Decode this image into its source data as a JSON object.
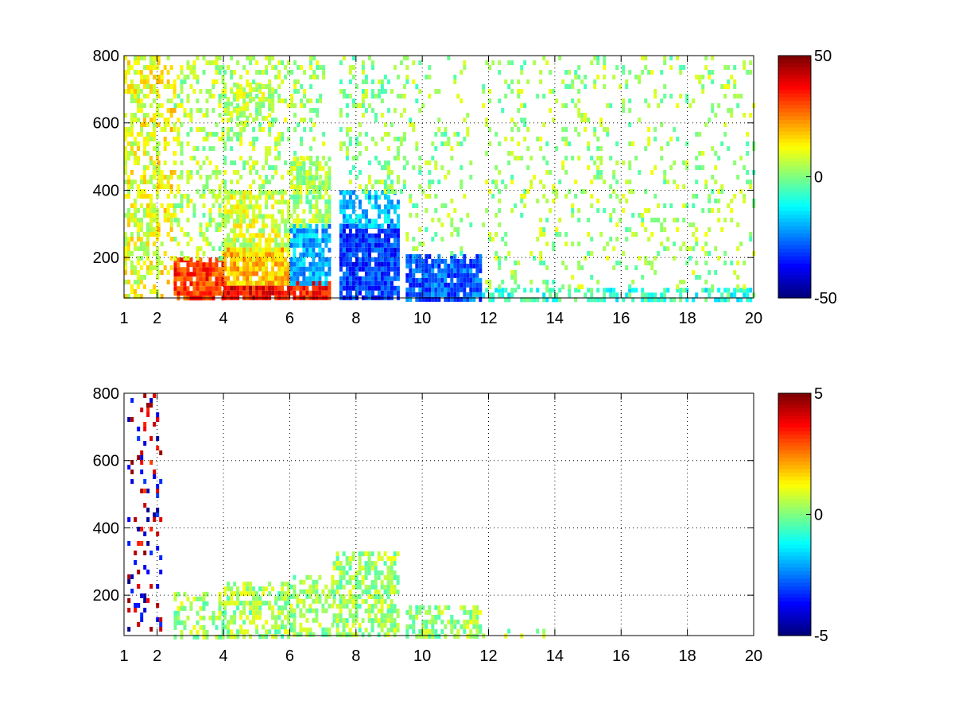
{
  "chart_data": [
    {
      "type": "heatmap",
      "title": "",
      "xlabel": "",
      "ylabel": "",
      "xlim": [
        1,
        20
      ],
      "ylim": [
        80,
        800
      ],
      "grid": true,
      "grid_style": "dotted",
      "colormap": "jet",
      "background_color": "#ffffff",
      "x_ticks": [
        1,
        2,
        4,
        6,
        8,
        10,
        12,
        14,
        16,
        18,
        20
      ],
      "x_tick_labels": [
        "1",
        "2",
        "4",
        "6",
        "8",
        "10",
        "12",
        "14",
        "16",
        "18",
        "20"
      ],
      "y_ticks": [
        200,
        400,
        600,
        800
      ],
      "y_tick_labels": [
        "200",
        "400",
        "600",
        "800"
      ],
      "colorbar": {
        "range": [
          -50,
          50
        ],
        "ticks": [
          50,
          0,
          -50
        ],
        "tick_labels": [
          "50",
          "0",
          "-50"
        ]
      },
      "regions": [
        {
          "x": [
            1.0,
            2.0
          ],
          "y": [
            80,
            800
          ],
          "value": 10,
          "density": 0.55
        },
        {
          "x": [
            2.0,
            2.5
          ],
          "y": [
            80,
            800
          ],
          "value": 12,
          "density": 0.35
        },
        {
          "x": [
            2.5,
            4.0
          ],
          "y": [
            80,
            200
          ],
          "value": 32,
          "density": 0.9
        },
        {
          "x": [
            2.5,
            4.0
          ],
          "y": [
            200,
            800
          ],
          "value": 5,
          "density": 0.35
        },
        {
          "x": [
            4.0,
            6.0
          ],
          "y": [
            80,
            130
          ],
          "value": 38,
          "density": 0.95
        },
        {
          "x": [
            4.0,
            6.0
          ],
          "y": [
            130,
            230
          ],
          "value": 18,
          "density": 0.85
        },
        {
          "x": [
            4.0,
            6.0
          ],
          "y": [
            230,
            400
          ],
          "value": 8,
          "density": 0.7
        },
        {
          "x": [
            4.0,
            5.5
          ],
          "y": [
            600,
            720
          ],
          "value": 6,
          "density": 0.5
        },
        {
          "x": [
            4.0,
            7.0
          ],
          "y": [
            400,
            800
          ],
          "value": 4,
          "density": 0.3
        },
        {
          "x": [
            6.0,
            7.2
          ],
          "y": [
            80,
            130
          ],
          "value": 35,
          "density": 0.95
        },
        {
          "x": [
            6.0,
            7.2
          ],
          "y": [
            130,
            300
          ],
          "value": -20,
          "density": 0.85
        },
        {
          "x": [
            6.0,
            7.2
          ],
          "y": [
            300,
            500
          ],
          "value": 4,
          "density": 0.6
        },
        {
          "x": [
            7.5,
            9.3
          ],
          "y": [
            80,
            300
          ],
          "value": -32,
          "density": 0.9
        },
        {
          "x": [
            7.5,
            9.3
          ],
          "y": [
            300,
            400
          ],
          "value": -18,
          "density": 0.6
        },
        {
          "x": [
            7.5,
            9.5
          ],
          "y": [
            400,
            800
          ],
          "value": 2,
          "density": 0.25
        },
        {
          "x": [
            9.5,
            11.8
          ],
          "y": [
            80,
            210
          ],
          "value": -28,
          "density": 0.85
        },
        {
          "x": [
            9.5,
            11.5
          ],
          "y": [
            210,
            800
          ],
          "value": 2,
          "density": 0.15
        },
        {
          "x": [
            11.8,
            20.0
          ],
          "y": [
            80,
            110
          ],
          "value": -8,
          "density": 0.5
        },
        {
          "x": [
            11.8,
            20.0
          ],
          "y": [
            110,
            800
          ],
          "value": 3,
          "density": 0.15
        }
      ]
    },
    {
      "type": "heatmap",
      "title": "",
      "xlabel": "",
      "ylabel": "",
      "xlim": [
        1,
        20
      ],
      "ylim": [
        80,
        800
      ],
      "grid": true,
      "grid_style": "dotted",
      "colormap": "jet",
      "background_color": "#ffffff",
      "x_ticks": [
        1,
        2,
        4,
        6,
        8,
        10,
        12,
        14,
        16,
        18,
        20
      ],
      "x_tick_labels": [
        "1",
        "2",
        "4",
        "6",
        "8",
        "10",
        "12",
        "14",
        "16",
        "18",
        "20"
      ],
      "y_ticks": [
        200,
        400,
        600,
        800
      ],
      "y_tick_labels": [
        "200",
        "400",
        "600",
        "800"
      ],
      "colorbar": {
        "range": [
          -5,
          5
        ],
        "ticks": [
          5,
          0,
          -5
        ],
        "tick_labels": [
          "5",
          "0",
          "-5"
        ]
      },
      "regions": [
        {
          "x": [
            1.1,
            2.1
          ],
          "y": [
            100,
            800
          ],
          "value": -4,
          "density": 0.12
        },
        {
          "x": [
            1.1,
            2.1
          ],
          "y": [
            100,
            800
          ],
          "value": 4,
          "density": 0.08
        },
        {
          "x": [
            2.5,
            4.0
          ],
          "y": [
            80,
            210
          ],
          "value": 0.3,
          "density": 0.45
        },
        {
          "x": [
            4.0,
            6.0
          ],
          "y": [
            80,
            240
          ],
          "value": 0.3,
          "density": 0.6
        },
        {
          "x": [
            6.0,
            7.3
          ],
          "y": [
            80,
            260
          ],
          "value": 0.3,
          "density": 0.5
        },
        {
          "x": [
            7.3,
            9.3
          ],
          "y": [
            80,
            330
          ],
          "value": 0.3,
          "density": 0.6
        },
        {
          "x": [
            9.5,
            11.8
          ],
          "y": [
            80,
            170
          ],
          "value": 0.3,
          "density": 0.6
        },
        {
          "x": [
            11.8,
            13.8
          ],
          "y": [
            80,
            100
          ],
          "value": 0.3,
          "density": 0.25
        }
      ]
    }
  ]
}
